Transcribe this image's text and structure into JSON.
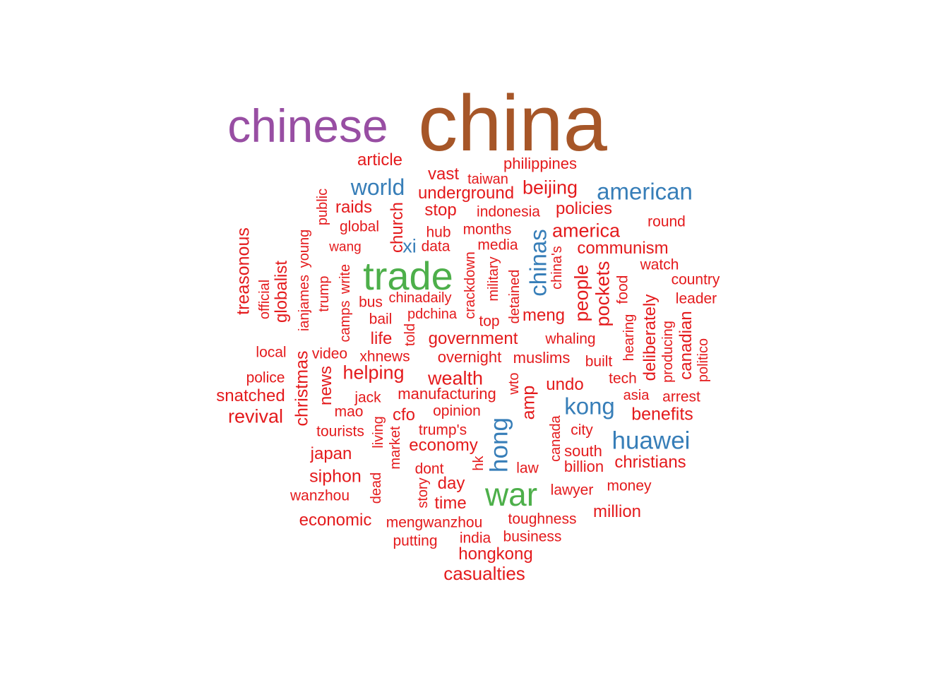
{
  "colors": {
    "purple": "#984ea3",
    "brown": "#a65628",
    "green": "#4daf4a",
    "blue": "#377eb8",
    "red": "#e41a1c"
  },
  "words": [
    {
      "text": "china",
      "color": "brown"
    },
    {
      "text": "chinese",
      "color": "purple"
    },
    {
      "text": "trade",
      "color": "green"
    },
    {
      "text": "war",
      "color": "green"
    },
    {
      "text": "american",
      "color": "blue"
    },
    {
      "text": "world",
      "color": "blue"
    },
    {
      "text": "chinas",
      "color": "blue"
    },
    {
      "text": "xi",
      "color": "blue"
    },
    {
      "text": "hong",
      "color": "blue"
    },
    {
      "text": "kong",
      "color": "blue"
    },
    {
      "text": "huawei",
      "color": "blue"
    },
    {
      "text": "article",
      "color": "red"
    },
    {
      "text": "vast",
      "color": "red"
    },
    {
      "text": "taiwan",
      "color": "red"
    },
    {
      "text": "philippines",
      "color": "red"
    },
    {
      "text": "underground",
      "color": "red"
    },
    {
      "text": "beijing",
      "color": "red"
    },
    {
      "text": "raids",
      "color": "red"
    },
    {
      "text": "stop",
      "color": "red"
    },
    {
      "text": "indonesia",
      "color": "red"
    },
    {
      "text": "policies",
      "color": "red"
    },
    {
      "text": "public",
      "color": "red"
    },
    {
      "text": "church",
      "color": "red"
    },
    {
      "text": "global",
      "color": "red"
    },
    {
      "text": "hub",
      "color": "red"
    },
    {
      "text": "months",
      "color": "red"
    },
    {
      "text": "america",
      "color": "red"
    },
    {
      "text": "round",
      "color": "red"
    },
    {
      "text": "treasonous",
      "color": "red"
    },
    {
      "text": "wang",
      "color": "red"
    },
    {
      "text": "data",
      "color": "red"
    },
    {
      "text": "media",
      "color": "red"
    },
    {
      "text": "communism",
      "color": "red"
    },
    {
      "text": "young",
      "color": "red"
    },
    {
      "text": "crackdown",
      "color": "red"
    },
    {
      "text": "china's",
      "color": "red"
    },
    {
      "text": "watch",
      "color": "red"
    },
    {
      "text": "globalist",
      "color": "red"
    },
    {
      "text": "ianjames",
      "color": "red"
    },
    {
      "text": "write",
      "color": "red"
    },
    {
      "text": "military",
      "color": "red"
    },
    {
      "text": "people",
      "color": "red"
    },
    {
      "text": "pockets",
      "color": "red"
    },
    {
      "text": "country",
      "color": "red"
    },
    {
      "text": "official",
      "color": "red"
    },
    {
      "text": "trump",
      "color": "red"
    },
    {
      "text": "camps",
      "color": "red"
    },
    {
      "text": "bus",
      "color": "red"
    },
    {
      "text": "chinadaily",
      "color": "red"
    },
    {
      "text": "detained",
      "color": "red"
    },
    {
      "text": "food",
      "color": "red"
    },
    {
      "text": "leader",
      "color": "red"
    },
    {
      "text": "bail",
      "color": "red"
    },
    {
      "text": "pdchina",
      "color": "red"
    },
    {
      "text": "meng",
      "color": "red"
    },
    {
      "text": "deliberately",
      "color": "red"
    },
    {
      "text": "top",
      "color": "red"
    },
    {
      "text": "hearing",
      "color": "red"
    },
    {
      "text": "canadian",
      "color": "red"
    },
    {
      "text": "told",
      "color": "red"
    },
    {
      "text": "life",
      "color": "red"
    },
    {
      "text": "government",
      "color": "red"
    },
    {
      "text": "whaling",
      "color": "red"
    },
    {
      "text": "producing",
      "color": "red"
    },
    {
      "text": "politico",
      "color": "red"
    },
    {
      "text": "local",
      "color": "red"
    },
    {
      "text": "christmas",
      "color": "red"
    },
    {
      "text": "video",
      "color": "red"
    },
    {
      "text": "xhnews",
      "color": "red"
    },
    {
      "text": "overnight",
      "color": "red"
    },
    {
      "text": "muslims",
      "color": "red"
    },
    {
      "text": "built",
      "color": "red"
    },
    {
      "text": "news",
      "color": "red"
    },
    {
      "text": "helping",
      "color": "red"
    },
    {
      "text": "wealth",
      "color": "red"
    },
    {
      "text": "tech",
      "color": "red"
    },
    {
      "text": "police",
      "color": "red"
    },
    {
      "text": "wto",
      "color": "red"
    },
    {
      "text": "undo",
      "color": "red"
    },
    {
      "text": "snatched",
      "color": "red"
    },
    {
      "text": "jack",
      "color": "red"
    },
    {
      "text": "manufacturing",
      "color": "red"
    },
    {
      "text": "asia",
      "color": "red"
    },
    {
      "text": "arrest",
      "color": "red"
    },
    {
      "text": "amp",
      "color": "red"
    },
    {
      "text": "revival",
      "color": "red"
    },
    {
      "text": "mao",
      "color": "red"
    },
    {
      "text": "cfo",
      "color": "red"
    },
    {
      "text": "opinion",
      "color": "red"
    },
    {
      "text": "benefits",
      "color": "red"
    },
    {
      "text": "tourists",
      "color": "red"
    },
    {
      "text": "living",
      "color": "red"
    },
    {
      "text": "trump's",
      "color": "red"
    },
    {
      "text": "canada",
      "color": "red"
    },
    {
      "text": "city",
      "color": "red"
    },
    {
      "text": "economy",
      "color": "red"
    },
    {
      "text": "market",
      "color": "red"
    },
    {
      "text": "japan",
      "color": "red"
    },
    {
      "text": "south",
      "color": "red"
    },
    {
      "text": "christians",
      "color": "red"
    },
    {
      "text": "siphon",
      "color": "red"
    },
    {
      "text": "dont",
      "color": "red"
    },
    {
      "text": "hk",
      "color": "red"
    },
    {
      "text": "law",
      "color": "red"
    },
    {
      "text": "billion",
      "color": "red"
    },
    {
      "text": "dead",
      "color": "red"
    },
    {
      "text": "day",
      "color": "red"
    },
    {
      "text": "money",
      "color": "red"
    },
    {
      "text": "wanzhou",
      "color": "red"
    },
    {
      "text": "story",
      "color": "red"
    },
    {
      "text": "lawyer",
      "color": "red"
    },
    {
      "text": "time",
      "color": "red"
    },
    {
      "text": "million",
      "color": "red"
    },
    {
      "text": "economic",
      "color": "red"
    },
    {
      "text": "mengwanzhou",
      "color": "red"
    },
    {
      "text": "toughness",
      "color": "red"
    },
    {
      "text": "putting",
      "color": "red"
    },
    {
      "text": "india",
      "color": "red"
    },
    {
      "text": "business",
      "color": "red"
    },
    {
      "text": "hongkong",
      "color": "red"
    },
    {
      "text": "casualties",
      "color": "red"
    }
  ]
}
